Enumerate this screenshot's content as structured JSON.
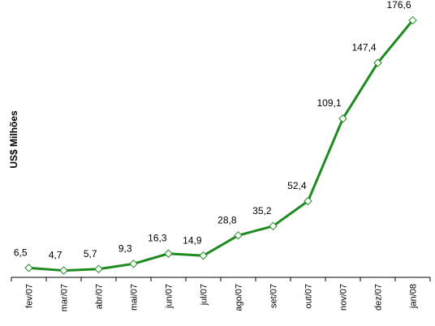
{
  "chart_data": {
    "type": "line",
    "ylabel": "US$ Milhões",
    "categories": [
      "fev/07",
      "mar/07",
      "abr/07",
      "mai/07",
      "jun/07",
      "jul/07",
      "ago/07",
      "set/07",
      "out/07",
      "nov/07",
      "dez/07",
      "jan/08"
    ],
    "values": [
      6.5,
      4.7,
      5.7,
      9.3,
      16.3,
      14.9,
      28.8,
      35.2,
      52.4,
      109.1,
      147.4,
      176.6
    ],
    "labels": [
      "6,5",
      "4,7",
      "5,7",
      "9,3",
      "16,3",
      "14,9",
      "28,8",
      "35,2",
      "52,4",
      "109,1",
      "147,4",
      "176,6"
    ],
    "ylim": [
      0,
      185
    ],
    "grid": false,
    "legend": "none",
    "colors": {
      "line": "#1f8a1f",
      "marker_fill": "#ffffff",
      "axis": "#000000"
    }
  }
}
